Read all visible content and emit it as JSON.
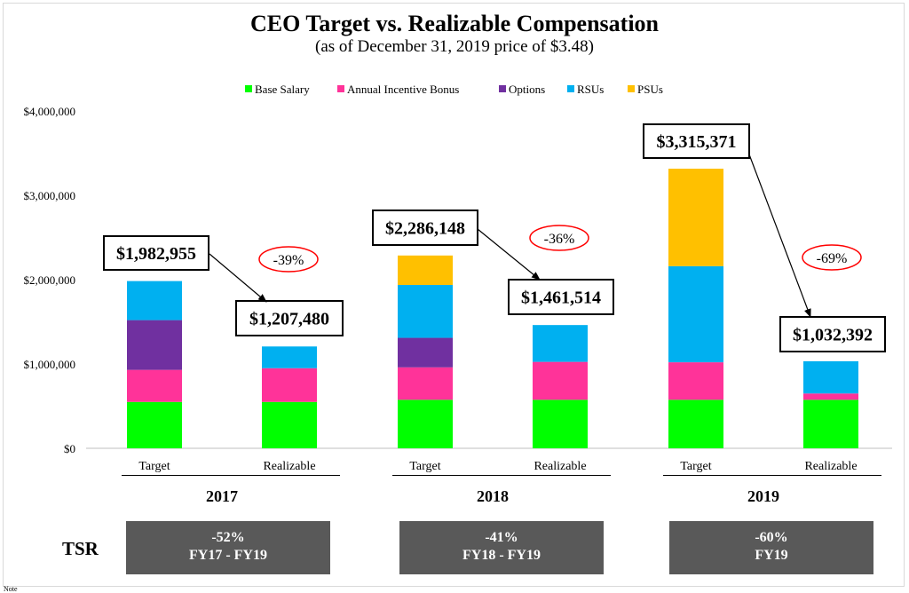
{
  "title": "CEO Target vs. Realizable Compensation",
  "subtitle": "(as of December 31, 2019 price of $3.48)",
  "colors": {
    "Base Salary": "#00ff00",
    "Annual Incentive Bonus": "#ff3399",
    "Options": "#7030a0",
    "RSUs": "#00b0f0",
    "PSUs": "#ffc000"
  },
  "chart_data": {
    "type": "bar",
    "stacked": true,
    "title": "CEO Target vs. Realizable Compensation",
    "subtitle": "(as of December 31, 2019 price of $3.48)",
    "ylim": [
      0,
      4000000
    ],
    "yticks": [
      0,
      1000000,
      2000000,
      3000000,
      4000000
    ],
    "ytick_labels": [
      "$0",
      "$1,000,000",
      "$2,000,000",
      "$3,000,000",
      "$4,000,000"
    ],
    "legend": [
      "Base Salary",
      "Annual Incentive Bonus",
      "Options",
      "RSUs",
      "PSUs"
    ],
    "legend_position": "top",
    "groups": [
      "2017",
      "2018",
      "2019"
    ],
    "categories": [
      "Target",
      "Realizable",
      "Target",
      "Realizable",
      "Target",
      "Realizable"
    ],
    "category_groups": [
      "2017",
      "2017",
      "2018",
      "2018",
      "2019",
      "2019"
    ],
    "series": [
      {
        "name": "Base Salary",
        "values": [
          550000,
          550000,
          575000,
          575000,
          575000,
          575000
        ]
      },
      {
        "name": "Annual Incentive Bonus",
        "values": [
          380000,
          400000,
          385000,
          450000,
          445000,
          75000
        ]
      },
      {
        "name": "Options",
        "values": [
          590000,
          0,
          350000,
          0,
          0,
          0
        ]
      },
      {
        "name": "RSUs",
        "values": [
          462955,
          257480,
          627000,
          436514,
          1140000,
          382392
        ]
      },
      {
        "name": "PSUs",
        "values": [
          0,
          0,
          349148,
          0,
          1155371,
          0
        ]
      }
    ],
    "totals": [
      1982955,
      1207480,
      2286148,
      1461514,
      3315371,
      1032392
    ],
    "total_labels": [
      "$1,982,955",
      "$1,207,480",
      "$2,286,148",
      "$1,461,514",
      "$3,315,371",
      "$1,032,392"
    ],
    "changes": [
      "-39%",
      "-36%",
      "-69%"
    ]
  },
  "tsr": {
    "label": "TSR",
    "boxes": [
      {
        "value": "-52%",
        "period": "FY17 - FY19"
      },
      {
        "value": "-41%",
        "period": "FY18 - FY19"
      },
      {
        "value": "-60%",
        "period": "FY19"
      }
    ]
  },
  "footnote": "Note"
}
